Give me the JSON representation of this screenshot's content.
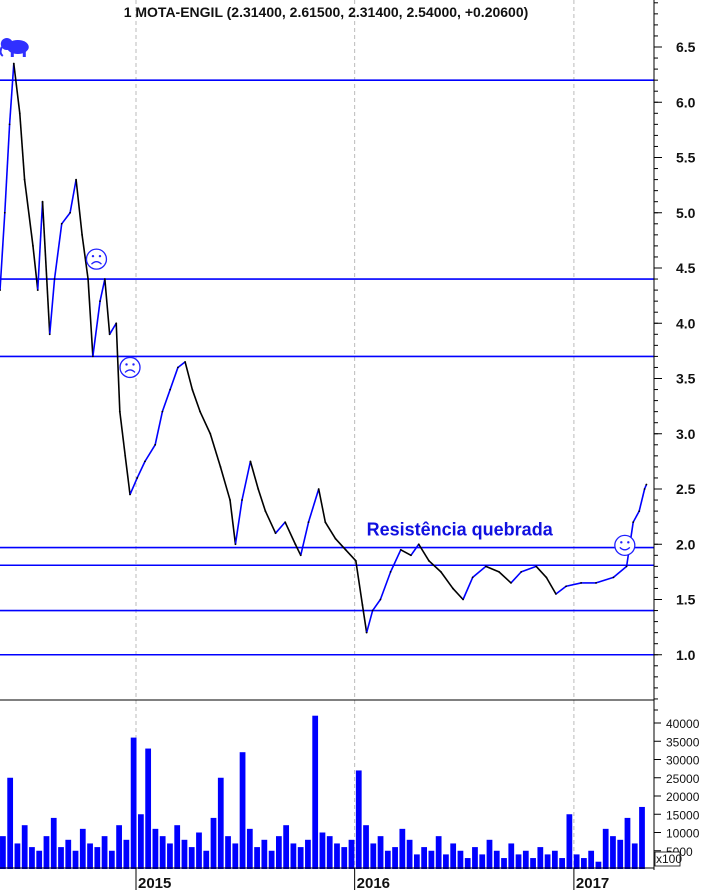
{
  "chart_data": [
    {
      "type": "line",
      "title": "1 MOTA-ENGIL (2.31400, 2.61500, 2.31400, 2.54000, +0.20600)",
      "ylim": [
        0.4,
        6.9
      ],
      "yticks": [
        "6.5",
        "6.0",
        "5.5",
        "5.0",
        "4.5",
        "4.0",
        "3.5",
        "3.0",
        "2.5",
        "2.0",
        "1.5",
        "1.0"
      ],
      "xticks": [
        "2015",
        "2016",
        "2017"
      ],
      "grid": "vertical dashed at year boundaries",
      "colors": {
        "up": "#0000ff",
        "down": "#000000",
        "levels": "#0000ff"
      },
      "series": [
        {
          "x": [
            "2014-05-19",
            "2014-05-27",
            "2014-06-04",
            "2014-06-11",
            "2014-06-21",
            "2014-06-29",
            "2014-07-13",
            "2014-07-21",
            "2014-07-29",
            "2014-08-10",
            "2014-08-18",
            "2014-08-30",
            "2014-09-13",
            "2014-09-23",
            "2014-10-03",
            "2014-10-13",
            "2014-10-21",
            "2014-11-02",
            "2014-11-10",
            "2014-11-18",
            "2014-11-29",
            "2014-12-05",
            "2014-12-14",
            "2014-12-22",
            "2015-01-03",
            "2015-01-16",
            "2015-02-02",
            "2015-02-14",
            "2015-02-27",
            "2015-03-12",
            "2015-03-24",
            "2015-04-05",
            "2015-04-18",
            "2015-05-05",
            "2015-05-22",
            "2015-06-07",
            "2015-06-16",
            "2015-06-27",
            "2015-07-11",
            "2015-07-24",
            "2015-08-05",
            "2015-08-22",
            "2015-09-07",
            "2015-09-24",
            "2015-10-03",
            "2015-10-16",
            "2015-11-02",
            "2015-11-13",
            "2015-11-30",
            "2015-12-17",
            "2016-01-03",
            "2016-01-14",
            "2016-01-21",
            "2016-01-31",
            "2016-02-13",
            "2016-03-01",
            "2016-03-18",
            "2016-04-04",
            "2016-04-17",
            "2016-05-04",
            "2016-05-24",
            "2016-06-13",
            "2016-06-30",
            "2016-07-16",
            "2016-08-07",
            "2016-08-29",
            "2016-09-18",
            "2016-10-05",
            "2016-10-30",
            "2016-11-16",
            "2016-12-02",
            "2016-12-19",
            "2017-01-13",
            "2017-02-07",
            "2017-03-08",
            "2017-03-30",
            "2017-04-10",
            "2017-04-20",
            "2017-04-29",
            "2017-05-02"
          ],
          "y": [
            4.3,
            5.0,
            5.8,
            6.35,
            5.9,
            5.3,
            4.7,
            4.3,
            5.1,
            3.9,
            4.4,
            4.9,
            5.0,
            5.3,
            4.8,
            4.4,
            3.7,
            4.2,
            4.4,
            3.9,
            4.0,
            3.2,
            2.8,
            2.45,
            2.6,
            2.75,
            2.9,
            3.2,
            3.4,
            3.6,
            3.65,
            3.4,
            3.2,
            3.0,
            2.7,
            2.4,
            2.0,
            2.4,
            2.75,
            2.5,
            2.3,
            2.1,
            2.2,
            2.0,
            1.9,
            2.2,
            2.5,
            2.2,
            2.05,
            1.95,
            1.85,
            1.45,
            1.2,
            1.4,
            1.5,
            1.75,
            1.95,
            1.9,
            2.0,
            1.85,
            1.75,
            1.6,
            1.5,
            1.7,
            1.8,
            1.75,
            1.65,
            1.75,
            1.8,
            1.7,
            1.55,
            1.62,
            1.65,
            1.65,
            1.7,
            1.8,
            2.2,
            2.3,
            2.5,
            2.54
          ]
        }
      ],
      "horizontal_levels": [
        6.2,
        4.4,
        3.7,
        1.97,
        1.81,
        1.4,
        1.0
      ],
      "annotations": [
        {
          "text": "Resistência quebrada",
          "date": "2016-01-21",
          "y": 2.08
        },
        {
          "icon": "elephant-icon",
          "date": "2014-06-11",
          "y": 6.5
        },
        {
          "icon": "sad-face-icon",
          "date": "2014-10-27",
          "y": 4.58
        },
        {
          "icon": "sad-face-icon",
          "date": "2014-12-22",
          "y": 3.6
        },
        {
          "icon": "smiley-face-icon",
          "date": "2017-03-27",
          "y": 1.99
        }
      ]
    },
    {
      "type": "bar",
      "ylabel_unit": "x100",
      "ylim": [
        0,
        45000
      ],
      "yticks": [
        "40000",
        "35000",
        "30000",
        "25000",
        "20000",
        "15000",
        "10000",
        "5000"
      ],
      "color": "#0000ff",
      "start": "2014-05-19",
      "end": "2017-05-02",
      "values": [
        9000,
        25000,
        7000,
        12000,
        6000,
        5000,
        9000,
        14000,
        6000,
        8000,
        5000,
        11000,
        7000,
        6000,
        9000,
        5000,
        12000,
        8000,
        36000,
        15000,
        33000,
        11000,
        9000,
        7000,
        12000,
        8000,
        6000,
        10000,
        5000,
        14000,
        25000,
        9000,
        7000,
        32000,
        11000,
        6000,
        8000,
        5000,
        9000,
        12000,
        7000,
        6000,
        8000,
        42000,
        10000,
        9000,
        7000,
        6000,
        8000,
        27000,
        12000,
        7000,
        9000,
        5000,
        6000,
        11000,
        8000,
        4000,
        6000,
        5000,
        9000,
        4000,
        7000,
        5000,
        3000,
        6000,
        4000,
        8000,
        5000,
        3000,
        7000,
        4000,
        5000,
        3000,
        6000,
        4000,
        5000,
        3000,
        15000,
        4000,
        3000,
        5000,
        2000,
        11000,
        9000,
        8000,
        14000,
        7000,
        17000
      ]
    }
  ]
}
